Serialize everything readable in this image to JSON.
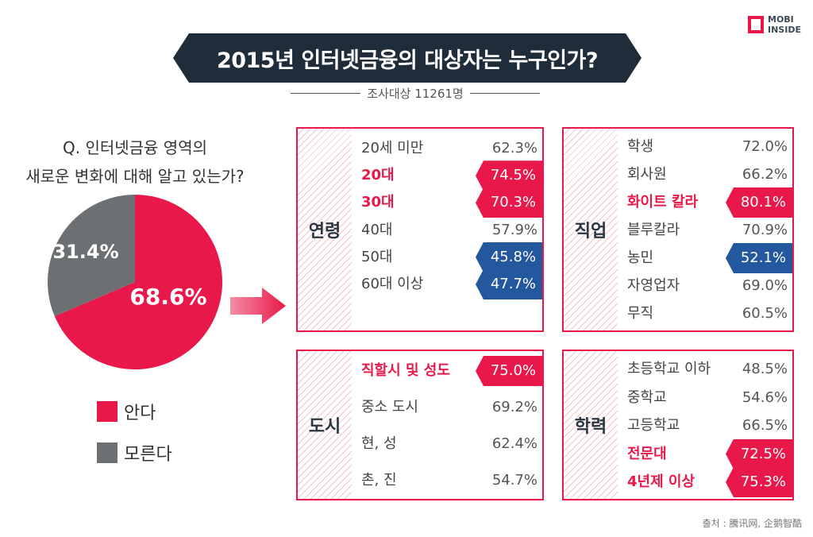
{
  "logo": {
    "line1": "MOBI",
    "line2": "INSIDE"
  },
  "title": "2015년 인터넷금융의 대상자는 누구인가?",
  "subtitle": "조사대상 11261명",
  "question": {
    "line1": "Q. 인터넷금융 영역의",
    "line2": "새로운 변화에 대해 알고 있는가?"
  },
  "colors": {
    "red": "#e8194a",
    "gray": "#6d7072",
    "navy": "#1f2d3a",
    "blue": "#23579e"
  },
  "chart_data": [
    {
      "type": "pie",
      "categories": [
        "안다",
        "모른다"
      ],
      "values": [
        68.6,
        31.4
      ],
      "labels": [
        "68.6%",
        "31.4%"
      ],
      "colors": [
        "#e8194a",
        "#6d7072"
      ],
      "legend": "bottom"
    },
    {
      "type": "table",
      "category": "연령",
      "rows": [
        {
          "label": "20세 미만",
          "value": "62.3%",
          "highlight": "none"
        },
        {
          "label": "20대",
          "value": "74.5%",
          "highlight": "red"
        },
        {
          "label": "30대",
          "value": "70.3%",
          "highlight": "red"
        },
        {
          "label": "40대",
          "value": "57.9%",
          "highlight": "none"
        },
        {
          "label": "50대",
          "value": "45.8%",
          "highlight": "blue"
        },
        {
          "label": "60대 이상",
          "value": "47.7%",
          "highlight": "blue"
        }
      ]
    },
    {
      "type": "table",
      "category": "직업",
      "rows": [
        {
          "label": "학생",
          "value": "72.0%",
          "highlight": "none"
        },
        {
          "label": "회사원",
          "value": "66.2%",
          "highlight": "none"
        },
        {
          "label": "화이트 칼라",
          "value": "80.1%",
          "highlight": "red"
        },
        {
          "label": "블루칼라",
          "value": "70.9%",
          "highlight": "none"
        },
        {
          "label": "농민",
          "value": "52.1%",
          "highlight": "blue"
        },
        {
          "label": "자영업자",
          "value": "69.0%",
          "highlight": "none"
        },
        {
          "label": "무직",
          "value": "60.5%",
          "highlight": "none"
        }
      ]
    },
    {
      "type": "table",
      "category": "도시",
      "rows": [
        {
          "label": "직할시 및 성도",
          "value": "75.0%",
          "highlight": "red"
        },
        {
          "label": "중소 도시",
          "value": "69.2%",
          "highlight": "none"
        },
        {
          "label": "현, 성",
          "value": "62.4%",
          "highlight": "none"
        },
        {
          "label": "촌, 진",
          "value": "54.7%",
          "highlight": "none"
        }
      ]
    },
    {
      "type": "table",
      "category": "학력",
      "rows": [
        {
          "label": "초등학교 이하",
          "value": "48.5%",
          "highlight": "none"
        },
        {
          "label": "중학교",
          "value": "54.6%",
          "highlight": "none"
        },
        {
          "label": "고등학교",
          "value": "66.5%",
          "highlight": "none"
        },
        {
          "label": "전문대",
          "value": "72.5%",
          "highlight": "red"
        },
        {
          "label": "4년제 이상",
          "value": "75.3%",
          "highlight": "red"
        }
      ]
    }
  ],
  "source": "출처 : 騰讯网, 企鹅智酷"
}
